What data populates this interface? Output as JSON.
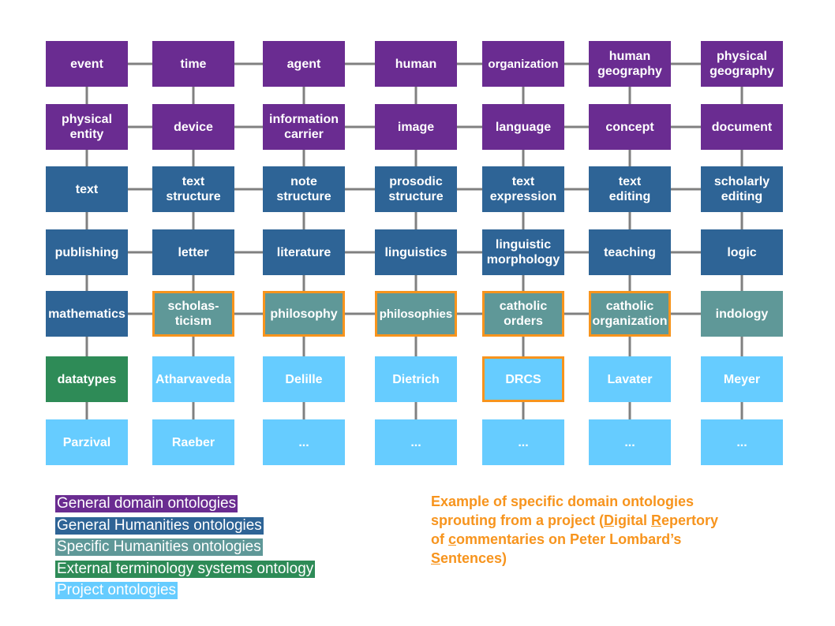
{
  "colors": {
    "general_domain": "#6a2c91",
    "general_humanities": "#2e6496",
    "specific_humanities": "#5f9898",
    "external_terminology": "#2e8b57",
    "project": "#66ccff",
    "highlight": "#f7941d",
    "connector": "#808080"
  },
  "grid": {
    "rows": [
      [
        "event",
        "time",
        "agent",
        "human",
        "organization",
        "human\ngeography",
        "physical\ngeography"
      ],
      [
        "physical\nentity",
        "device",
        "information\ncarrier",
        "image",
        "language",
        "concept",
        "document"
      ],
      [
        "text",
        "text\nstructure",
        "note\nstructure",
        "prosodic\nstructure",
        "text\nexpression",
        "text\nediting",
        "scholarly\nediting"
      ],
      [
        "publishing",
        "letter",
        "literature",
        "linguistics",
        "linguistic\nmorphology",
        "teaching",
        "logic"
      ],
      [
        "mathematics",
        "scholas-\nticism",
        "philosophy",
        "philosophies",
        "catholic\norders",
        "catholic\norganization",
        "indology"
      ],
      [
        "datatypes",
        "Atharvaveda",
        "Delille",
        "Dietrich",
        "DRCS",
        "Lavater",
        "Meyer"
      ],
      [
        "Parzival",
        "Raeber",
        "...",
        "...",
        "...",
        "...",
        "..."
      ]
    ],
    "categories": [
      [
        "general_domain",
        "general_domain",
        "general_domain",
        "general_domain",
        "general_domain",
        "general_domain",
        "general_domain"
      ],
      [
        "general_domain",
        "general_domain",
        "general_domain",
        "general_domain",
        "general_domain",
        "general_domain",
        "general_domain"
      ],
      [
        "general_humanities",
        "general_humanities",
        "general_humanities",
        "general_humanities",
        "general_humanities",
        "general_humanities",
        "general_humanities"
      ],
      [
        "general_humanities",
        "general_humanities",
        "general_humanities",
        "general_humanities",
        "general_humanities",
        "general_humanities",
        "general_humanities"
      ],
      [
        "general_humanities",
        "specific_humanities",
        "specific_humanities",
        "specific_humanities",
        "specific_humanities",
        "specific_humanities",
        "specific_humanities"
      ],
      [
        "external_terminology",
        "project",
        "project",
        "project",
        "project",
        "project",
        "project"
      ],
      [
        "project",
        "project",
        "project",
        "project",
        "project",
        "project",
        "project"
      ]
    ],
    "highlighted": [
      [
        4,
        1
      ],
      [
        4,
        2
      ],
      [
        4,
        3
      ],
      [
        4,
        4
      ],
      [
        4,
        5
      ],
      [
        5,
        4
      ]
    ]
  },
  "legend": [
    {
      "label": "General domain ontologies",
      "category": "general_domain"
    },
    {
      "label": "General Humanities ontologies",
      "category": "general_humanities"
    },
    {
      "label": "Specific Humanities ontologies",
      "category": "specific_humanities"
    },
    {
      "label": "External terminology systems ontology",
      "category": "external_terminology"
    },
    {
      "label": "Project ontologies",
      "category": "project"
    }
  ],
  "note": {
    "parts": [
      {
        "t": "Example of specific domain ontologies\nsprouting from a project ("
      },
      {
        "t": "D",
        "u": true
      },
      {
        "t": "igital "
      },
      {
        "t": "R",
        "u": true
      },
      {
        "t": "epertory\nof "
      },
      {
        "t": "c",
        "u": true
      },
      {
        "t": "ommentaries on Peter Lombard’s\n"
      },
      {
        "t": "S",
        "u": true
      },
      {
        "t": "entences)"
      }
    ]
  }
}
